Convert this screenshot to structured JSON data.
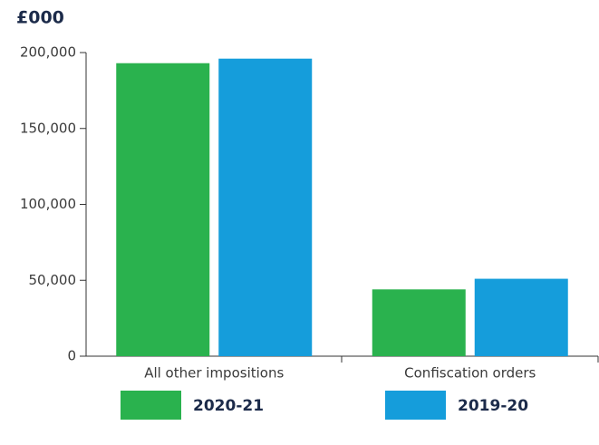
{
  "chart_data": {
    "type": "bar",
    "y_axis_label": "£000",
    "categories": [
      "All other impositions",
      "Confiscation orders"
    ],
    "series": [
      {
        "name": "2020-21",
        "color": "#2ab24e",
        "values": [
          193000,
          44000
        ]
      },
      {
        "name": "2019-20",
        "color": "#159ddb",
        "values": [
          196000,
          51000
        ]
      }
    ],
    "ylim": [
      0,
      200000
    ],
    "yticks": [
      0,
      {
        "value": 50000,
        "label": "50,000"
      },
      {
        "value": 100000,
        "label": "100,000"
      },
      {
        "value": 150000,
        "label": "150,000"
      },
      {
        "value": 200000,
        "label": "200,000"
      }
    ],
    "legend": "bottom"
  }
}
